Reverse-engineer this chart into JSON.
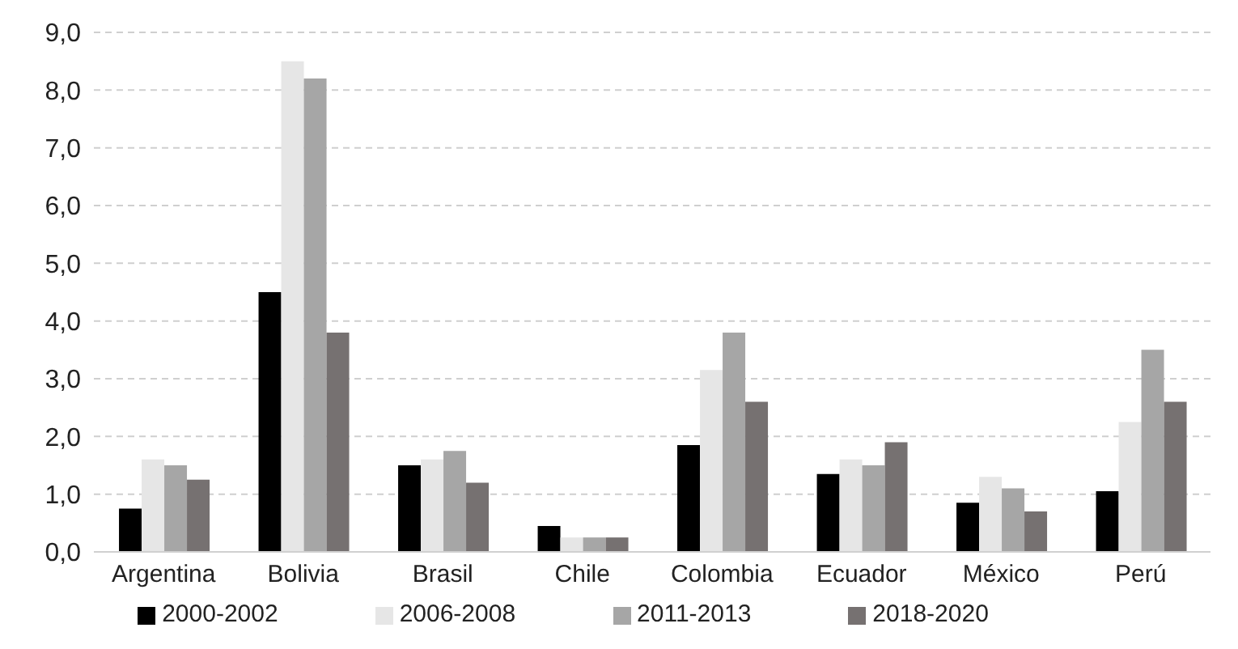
{
  "chart_data": {
    "type": "bar",
    "categories": [
      "Argentina",
      "Bolivia",
      "Brasil",
      "Chile",
      "Colombia",
      "Ecuador",
      "México",
      "Perú"
    ],
    "series": [
      {
        "name": "2000-2002",
        "color": "#000000",
        "values": [
          0.75,
          4.5,
          1.5,
          0.45,
          1.85,
          1.35,
          0.85,
          1.05
        ]
      },
      {
        "name": "2006-2008",
        "color": "#e6e6e6",
        "values": [
          1.6,
          8.5,
          1.6,
          0.25,
          3.15,
          1.6,
          1.3,
          2.25
        ]
      },
      {
        "name": "2011-2013",
        "color": "#a6a6a6",
        "values": [
          1.5,
          8.2,
          1.75,
          0.25,
          3.8,
          1.5,
          1.1,
          3.5
        ]
      },
      {
        "name": "2018-2020",
        "color": "#767171",
        "values": [
          1.25,
          3.8,
          1.2,
          0.25,
          2.6,
          1.9,
          0.7,
          2.6
        ]
      }
    ],
    "ylim": [
      0,
      9
    ],
    "yticks": [
      {
        "value": 0,
        "label": "0,0"
      },
      {
        "value": 1,
        "label": "1,0"
      },
      {
        "value": 2,
        "label": "2,0"
      },
      {
        "value": 3,
        "label": "3,0"
      },
      {
        "value": 4,
        "label": "4,0"
      },
      {
        "value": 5,
        "label": "5,0"
      },
      {
        "value": 6,
        "label": "6,0"
      },
      {
        "value": 7,
        "label": "7,0"
      },
      {
        "value": 8,
        "label": "8,0"
      },
      {
        "value": 9,
        "label": "9,0"
      }
    ],
    "grid": "y",
    "legend": "bottom"
  }
}
